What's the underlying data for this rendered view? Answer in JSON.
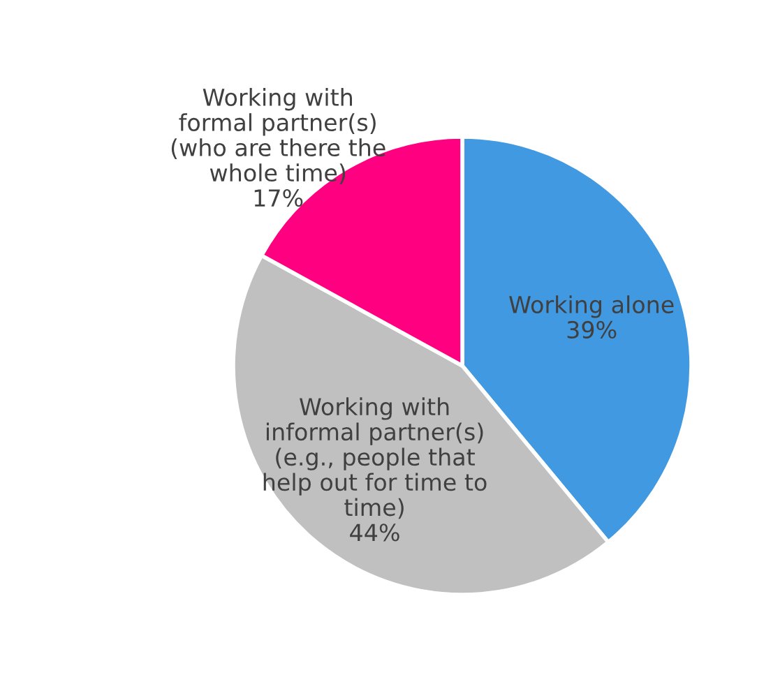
{
  "chart_data": {
    "type": "pie",
    "categories": [
      "Working alone",
      "Working with\ninformal partner(s)\n(e.g., people that\nhelp out for time to\ntime)",
      "Working with\nformal partner(s)\n(who are there the\nwhole time)"
    ],
    "values": [
      39,
      44,
      17
    ],
    "colors": [
      "#4199e1",
      "#c0c0c0",
      "#ff0080"
    ],
    "value_labels": [
      "39%",
      "44%",
      "17%"
    ]
  }
}
